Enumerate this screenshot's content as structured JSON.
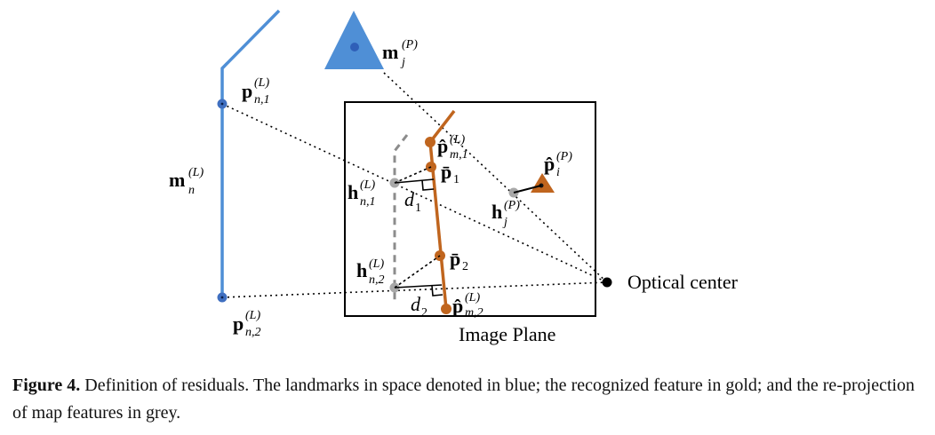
{
  "labels": {
    "image_plane": "Image Plane",
    "optical_center": "Optical center",
    "m_n_L": {
      "base": "m",
      "sup": "(L)",
      "sub": "n"
    },
    "m_j_P": {
      "base": "m",
      "sup": "(P)",
      "sub": "j"
    },
    "p_n1_L": {
      "base": "p",
      "sup": "(L)",
      "sub": "n,1"
    },
    "p_n2_L": {
      "base": "p",
      "sup": "(L)",
      "sub": "n,2"
    },
    "h_n1_L": {
      "base": "h",
      "sup": "(L)",
      "sub": "n,1"
    },
    "h_n2_L": {
      "base": "h",
      "sup": "(L)",
      "sub": "n,2"
    },
    "h_j_P": {
      "base": "h",
      "sup": "(P)",
      "sub": "j"
    },
    "phat_m1_L": {
      "base": "p̂",
      "sup": "(L)",
      "sub": "m,1"
    },
    "phat_m2_L": {
      "base": "p̂",
      "sup": "(L)",
      "sub": "m,2"
    },
    "phat_i_P": {
      "base": "p̂",
      "sup": "(P)",
      "sub": "i"
    },
    "pbar_1": {
      "base": "p̄",
      "sub": "1"
    },
    "pbar_2": {
      "base": "p̄",
      "sub": "2"
    },
    "d_1": {
      "base": "d",
      "sub": "1"
    },
    "d_2": {
      "base": "d",
      "sub": "2"
    }
  },
  "caption": {
    "label": "Figure 4.",
    "text": "Definition of residuals. The landmarks in space denoted in blue; the recognized feature in gold; and the re-projection of map features in grey."
  },
  "colors": {
    "landmark": "#4f8fd6",
    "landmark_point": "#3f6fc0",
    "feature": "#c0651e",
    "reprojection": "#8c8c8c",
    "reprojection_point": "#a8a8a8"
  }
}
